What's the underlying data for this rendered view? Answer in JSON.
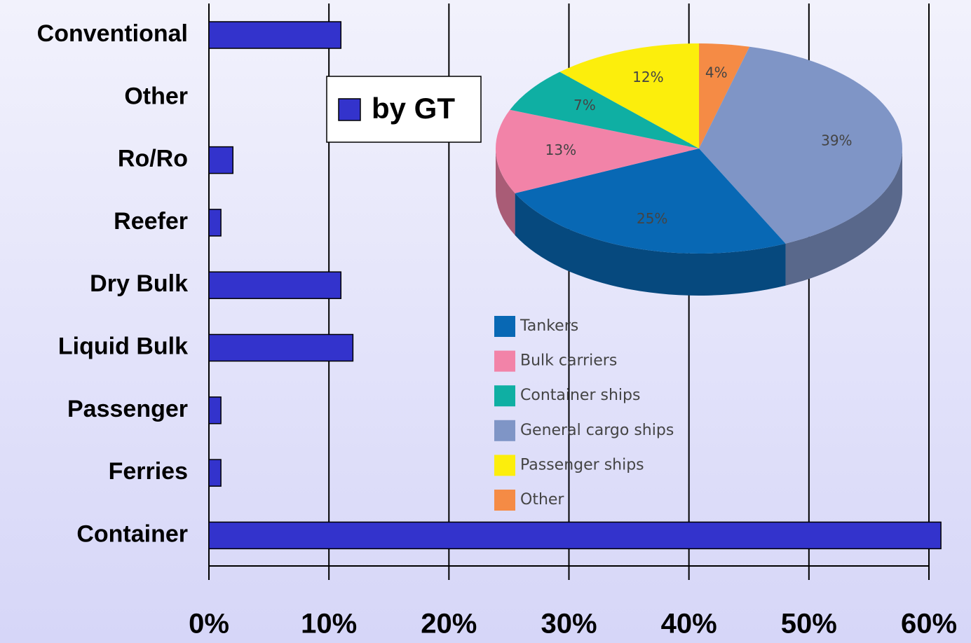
{
  "chart_data": [
    {
      "type": "bar",
      "orientation": "horizontal",
      "categories": [
        "Conventional",
        "Other",
        "Ro/Ro",
        "Reefer",
        "Dry Bulk",
        "Liquid Bulk",
        "Passenger",
        "Ferries",
        "Container"
      ],
      "series": [
        {
          "name": "by GT",
          "color": "#3333cc",
          "values": [
            11,
            0,
            2,
            1,
            11,
            12,
            1,
            1,
            61
          ]
        }
      ],
      "xlim": [
        0,
        60
      ],
      "xticks": [
        {
          "value": 0,
          "label": "0%"
        },
        {
          "value": 10,
          "label": "10%"
        },
        {
          "value": 20,
          "label": "20%"
        },
        {
          "value": 30,
          "label": "30%"
        },
        {
          "value": 40,
          "label": "40%"
        },
        {
          "value": 50,
          "label": "50%"
        },
        {
          "value": 60,
          "label": "60%"
        }
      ],
      "grid": true
    },
    {
      "type": "pie",
      "categories": [
        "Tankers",
        "Bulk carriers",
        "Container ships",
        "General cargo ships",
        "Passenger ships",
        "Other"
      ],
      "values": [
        25,
        13,
        7,
        39,
        12,
        4
      ],
      "value_labels": [
        "25%",
        "13%",
        "7%",
        "39%",
        "12%",
        "4%"
      ],
      "colors": [
        "#0868b4",
        "#f283a8",
        "#0fafa3",
        "#7f95c6",
        "#fcee0c",
        "#f58b45"
      ]
    }
  ]
}
